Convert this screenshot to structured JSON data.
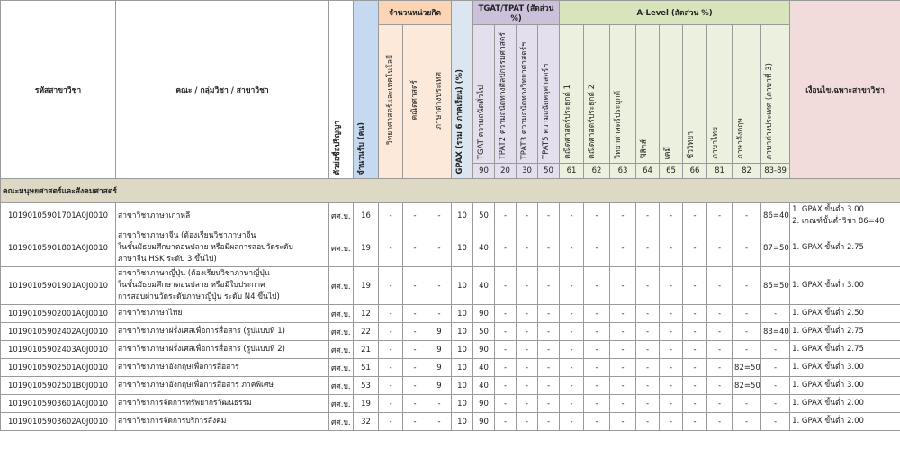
{
  "table": {
    "header": {
      "code": "รหัสสาขาวิชา",
      "name": "คณะ / กลุ่มวิชา / สาขาวิชา",
      "degree": "ตัวย่อชื่อปริญญา",
      "seats": "จำนวนรับ (คน)",
      "credits": {
        "title": "จำนวนหน่วยกิต",
        "columns": [
          "วิทยาศาสตร์และเทคโนโลยี",
          "คณิตศาสตร์",
          "ภาษาต่างประเทศ"
        ]
      },
      "gpax": "GPAX (รวม 6 ภาคเรียน) (%)",
      "tgat": {
        "title": "TGAT/TPAT (สัดส่วน %)",
        "columns": [
          {
            "label": "TGAT  ความถนัดทั่วไป",
            "code": 90
          },
          {
            "label": "TPAT2  ความถนัดทางศิลปกรรมศาสตร์",
            "code": 20
          },
          {
            "label": "TPAT3  ความถนัดทางวิทยาศาสตร์ฯ",
            "code": 30
          },
          {
            "label": "TPAT5  ความถนัดครุศาสตร์ฯ",
            "code": 50
          }
        ]
      },
      "alevel": {
        "title": "A-Level (สัดส่วน %)",
        "columns": [
          {
            "label": "คณิตศาสตร์ประยุกต์ 1",
            "code": 61
          },
          {
            "label": "คณิตศาสตร์ประยุกต์ 2",
            "code": 62
          },
          {
            "label": "วิทยาศาสตร์ประยุกต์",
            "code": 63
          },
          {
            "label": "ฟิสิกส์",
            "code": 64
          },
          {
            "label": "เคมี",
            "code": 65
          },
          {
            "label": "ชีววิทยา",
            "code": 66
          },
          {
            "label": "ภาษาไทย",
            "code": 81
          },
          {
            "label": "ภาษาอังกฤษ",
            "code": 82
          },
          {
            "label": "ภาษาต่างประเทศ (ภาษาที่ 3)",
            "code": "83-89"
          }
        ]
      },
      "conditions": "เงื่อนไขเฉพาะสาขาวิชา"
    },
    "sections": [
      {
        "title": "คณะมนุษยศาสตร์และสังคมศาสตร์",
        "rows": [
          {
            "code": "10190105901701A0J0010",
            "name": [
              "สาขาวิชาภาษาเกาหลี"
            ],
            "degree": "ศศ.บ.",
            "seats": 16,
            "credits": [
              "-",
              "-",
              "-"
            ],
            "gpax": 10,
            "tgat": [
              50,
              "-",
              "-",
              "-"
            ],
            "alevel": [
              "-",
              "-",
              "-",
              "-",
              "-",
              "-",
              "-",
              "-",
              "86=40"
            ],
            "conditions": [
              "1. GPAX ขั้นต่ำ 3.00",
              "2. เกณฑ์ขั้นต่ำวิชา 86=40"
            ]
          },
          {
            "code": "10190105901801A0J0010",
            "name": [
              "สาขาวิชาภาษาจีน (ต้องเรียนวิชาภาษาจีน",
              "ในชั้นมัธยมศึกษาตอนปลาย หรือมีผลการสอบวัดระดับ",
              "ภาษาจีน HSK ระดับ 3 ขึ้นไป)"
            ],
            "degree": "ศศ.บ.",
            "seats": 19,
            "credits": [
              "-",
              "-",
              "-"
            ],
            "gpax": 10,
            "tgat": [
              40,
              "-",
              "-",
              "-"
            ],
            "alevel": [
              "-",
              "-",
              "-",
              "-",
              "-",
              "-",
              "-",
              "-",
              "87=50"
            ],
            "conditions": [
              "1. GPAX ขั้นต่ำ 2.75"
            ]
          },
          {
            "code": "10190105901901A0J0010",
            "name": [
              "สาขาวิชาภาษาญี่ปุ่น (ต้องเรียนวิชาภาษาญี่ปุ่น",
              "ในชั้นมัธยมศึกษาตอนปลาย หรือมีใบประกาศ",
              "การสอบผ่านวัดระดับภาษาญี่ปุ่น ระดับ N4 ขึ้นไป)"
            ],
            "degree": "ศศ.บ.",
            "seats": 19,
            "credits": [
              "-",
              "-",
              "-"
            ],
            "gpax": 10,
            "tgat": [
              40,
              "-",
              "-",
              "-"
            ],
            "alevel": [
              "-",
              "-",
              "-",
              "-",
              "-",
              "-",
              "-",
              "-",
              "85=50"
            ],
            "conditions": [
              "1. GPAX ขั้นต่ำ 3.00"
            ]
          },
          {
            "code": "10190105902001A0J0010",
            "name": [
              "สาขาวิชาภาษาไทย"
            ],
            "degree": "ศศ.บ.",
            "seats": 12,
            "credits": [
              "-",
              "-",
              "-"
            ],
            "gpax": 10,
            "tgat": [
              90,
              "-",
              "-",
              "-"
            ],
            "alevel": [
              "-",
              "-",
              "-",
              "-",
              "-",
              "-",
              "-",
              "-",
              "-"
            ],
            "conditions": [
              "1. GPAX ขั้นต่ำ 2.50"
            ]
          },
          {
            "code": "10190105902402A0J0010",
            "name": [
              "สาขาวิชาภาษาฝรั่งเศสเพื่อการสื่อสาร (รูปแบบที่ 1)"
            ],
            "degree": "ศศ.บ.",
            "seats": 22,
            "credits": [
              "-",
              "-",
              9
            ],
            "gpax": 10,
            "tgat": [
              50,
              "-",
              "-",
              "-"
            ],
            "alevel": [
              "-",
              "-",
              "-",
              "-",
              "-",
              "-",
              "-",
              "-",
              "83=40"
            ],
            "conditions": [
              "1. GPAX ขั้นต่ำ 2.75"
            ]
          },
          {
            "code": "10190105902403A0J0010",
            "name": [
              "สาขาวิชาภาษาฝรั่งเศสเพื่อการสื่อสาร (รูปแบบที่ 2)"
            ],
            "degree": "ศศ.บ.",
            "seats": 21,
            "credits": [
              "-",
              "-",
              9
            ],
            "gpax": 10,
            "tgat": [
              90,
              "-",
              "-",
              "-"
            ],
            "alevel": [
              "-",
              "-",
              "-",
              "-",
              "-",
              "-",
              "-",
              "-",
              "-"
            ],
            "conditions": [
              "1. GPAX ขั้นต่ำ 2.75"
            ]
          },
          {
            "code": "10190105902501A0J0010",
            "name": [
              "สาขาวิชาภาษาอังกฤษเพื่อการสื่อสาร"
            ],
            "degree": "ศศ.บ.",
            "seats": 51,
            "credits": [
              "-",
              "-",
              9
            ],
            "gpax": 10,
            "tgat": [
              40,
              "-",
              "-",
              "-"
            ],
            "alevel": [
              "-",
              "-",
              "-",
              "-",
              "-",
              "-",
              "-",
              "82=50",
              "-"
            ],
            "conditions": [
              "1. GPAX ขั้นต่ำ 3.00"
            ]
          },
          {
            "code": "10190105902501B0J0010",
            "name": [
              "สาขาวิชาภาษาอังกฤษเพื่อการสื่อสาร ภาคพิเศษ"
            ],
            "degree": "ศศ.บ.",
            "seats": 53,
            "credits": [
              "-",
              "-",
              9
            ],
            "gpax": 10,
            "tgat": [
              40,
              "-",
              "-",
              "-"
            ],
            "alevel": [
              "-",
              "-",
              "-",
              "-",
              "-",
              "-",
              "-",
              "82=50",
              "-"
            ],
            "conditions": [
              "1. GPAX ขั้นต่ำ 3.00"
            ]
          },
          {
            "code": "10190105903601A0J0010",
            "name": [
              "สาขาวิชาการจัดการทรัพยากรวัฒนธรรม"
            ],
            "degree": "ศศ.บ.",
            "seats": 19,
            "credits": [
              "-",
              "-",
              "-"
            ],
            "gpax": 10,
            "tgat": [
              90,
              "-",
              "-",
              "-"
            ],
            "alevel": [
              "-",
              "-",
              "-",
              "-",
              "-",
              "-",
              "-",
              "-",
              "-"
            ],
            "conditions": [
              "1. GPAX ขั้นต่ำ 2.00"
            ]
          },
          {
            "code": "10190105903602A0J0010",
            "name": [
              "สาขาวิชาการจัดการบริการสังคม"
            ],
            "degree": "ศศ.บ.",
            "seats": 32,
            "credits": [
              "-",
              "-",
              "-"
            ],
            "gpax": 10,
            "tgat": [
              90,
              "-",
              "-",
              "-"
            ],
            "alevel": [
              "-",
              "-",
              "-",
              "-",
              "-",
              "-",
              "-",
              "-",
              "-"
            ],
            "conditions": [
              "1. GPAX ขั้นต่ำ 2.00"
            ]
          }
        ]
      }
    ]
  }
}
